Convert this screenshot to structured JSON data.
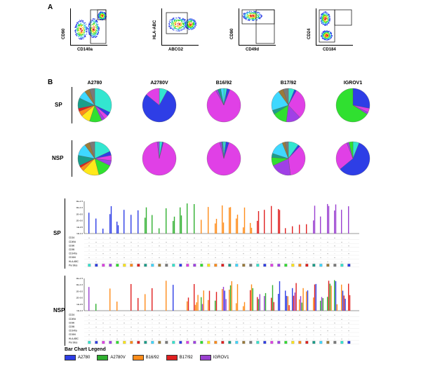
{
  "panel_a": {
    "letter": "A",
    "plots": [
      {
        "ylabel": "CD90",
        "xlabel": "CD140a"
      },
      {
        "ylabel": "HLA-ABC",
        "xlabel": "ABCG2"
      },
      {
        "ylabel": "CD90",
        "xlabel": "CD49d"
      },
      {
        "ylabel": "CD24",
        "xlabel": "CD184"
      }
    ]
  },
  "panel_b": {
    "letter": "B",
    "columns": [
      "A2780",
      "A2780V",
      "B16/92",
      "B17/92",
      "IGROV1"
    ],
    "rows": [
      "SP",
      "NSP"
    ],
    "pie_colors": [
      "#33e6d0",
      "#2e3ee6",
      "#e040e6",
      "#a040e6",
      "#30e030",
      "#ffe81a",
      "#ff8c1a",
      "#e02020",
      "#1a9e8a",
      "#3fd8ff",
      "#9a7a3a",
      "#7a7a7a"
    ],
    "pies": {
      "SP": [
        [
          0.32,
          0.04,
          0.04,
          0.03,
          0.12,
          0.09,
          0.05,
          0.03,
          0.1,
          0.08,
          0.05,
          0.05
        ],
        [
          0.08,
          0.78,
          0.14,
          0,
          0,
          0,
          0,
          0,
          0,
          0,
          0,
          0
        ],
        [
          0.03,
          0.03,
          0.86,
          0.02,
          0.0,
          0,
          0,
          0,
          0.03,
          0.03,
          0,
          0
        ],
        [
          0.06,
          0.02,
          0.3,
          0.14,
          0.14,
          0,
          0,
          0,
          0.04,
          0.2,
          0.05,
          0.05
        ],
        [
          0,
          0.28,
          0.04,
          0.02,
          0.66,
          0,
          0,
          0,
          0,
          0,
          0,
          0
        ]
      ],
      "NSP": [
        [
          0.18,
          0.04,
          0.05,
          0.05,
          0.14,
          0.16,
          0.04,
          0.02,
          0.1,
          0.12,
          0.05,
          0.05
        ],
        [
          0.03,
          0.01,
          0.94,
          0.02,
          0,
          0,
          0,
          0,
          0,
          0,
          0,
          0
        ],
        [
          0.02,
          0.03,
          0.91,
          0.02,
          0,
          0,
          0,
          0,
          0.01,
          0.01,
          0,
          0
        ],
        [
          0.1,
          0.02,
          0.36,
          0.2,
          0.08,
          0,
          0,
          0,
          0.04,
          0.14,
          0.03,
          0.03
        ],
        [
          0.06,
          0.58,
          0.3,
          0.02,
          0.04,
          0,
          0,
          0,
          0,
          0,
          0,
          0
        ]
      ]
    },
    "bar_rows": [
      "SP",
      "NSP"
    ],
    "marker_labels": [
      "CD24",
      "CD49d",
      "CD90",
      "CD95",
      "CD140a",
      "CD184",
      "HLA-ABC",
      "Pie Slice"
    ],
    "y_ticks": [
      "1E+1.5",
      "1E+1.0",
      "1E+0.5",
      "1E+0.0",
      "1E-0.5",
      "1E-1.0"
    ],
    "legend": {
      "title": "Bar Chart Legend",
      "items": [
        {
          "label": "A2780",
          "color": "#2e3ee6"
        },
        {
          "label": "A2780V",
          "color": "#30b030"
        },
        {
          "label": "B16/92",
          "color": "#ff8c1a"
        },
        {
          "label": "B17/92",
          "color": "#e02020"
        },
        {
          "label": "IGROV1",
          "color": "#9a40d0"
        }
      ]
    }
  }
}
